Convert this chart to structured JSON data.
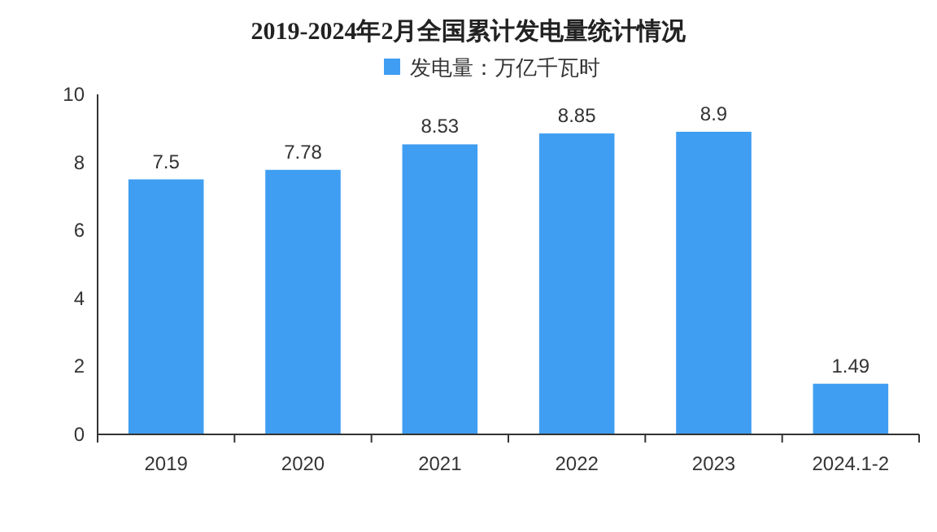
{
  "chart_data": {
    "type": "bar",
    "title": "2019-2024年2月全国累计发电量统计情况",
    "categories": [
      "2019",
      "2020",
      "2021",
      "2022",
      "2023",
      "2024.1-2"
    ],
    "series": [
      {
        "name": "发电量：万亿千瓦时",
        "color": "#3f9ef2",
        "values": [
          7.5,
          7.78,
          8.53,
          8.85,
          8.9,
          1.49
        ]
      }
    ],
    "ylim": [
      0,
      10
    ],
    "yticks": [
      0,
      2,
      4,
      6,
      8,
      10
    ],
    "grid": false,
    "legend": "top",
    "data_labels": true
  }
}
